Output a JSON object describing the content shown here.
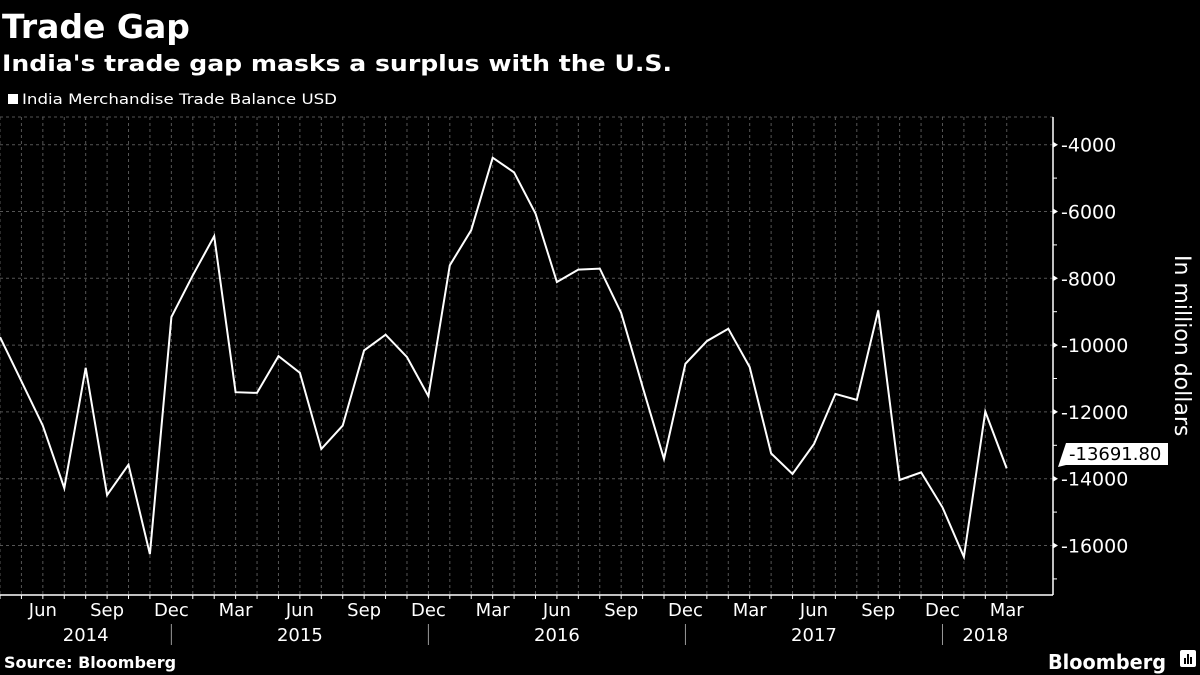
{
  "header": {
    "title": "Trade Gap",
    "subtitle": "India's trade gap masks a surplus with the U.S."
  },
  "footer": {
    "source": "Source: Bloomberg",
    "brand": "Bloomberg"
  },
  "colors": {
    "background": "#000000",
    "line": "#ffffff",
    "grid": "#555555"
  },
  "chart_data": {
    "type": "line",
    "legend": [
      "India Merchandise Trade Balance USD"
    ],
    "legend_placement": "top-left",
    "grid": true,
    "ylabel": "In million dollars",
    "y_axis_side": "right",
    "ylim": [
      -17500,
      -3200
    ],
    "yticks": [
      -4000,
      -6000,
      -8000,
      -10000,
      -12000,
      -14000,
      -16000
    ],
    "ytick_labels": [
      "-4000",
      "-6000",
      "-8000",
      "-10000",
      "-12000",
      "-14000",
      "-16000"
    ],
    "x_month_labels": [
      {
        "label": "Jun",
        "month": "2014-06"
      },
      {
        "label": "Sep",
        "month": "2014-09"
      },
      {
        "label": "Dec",
        "month": "2014-12"
      },
      {
        "label": "Mar",
        "month": "2015-03"
      },
      {
        "label": "Jun",
        "month": "2015-06"
      },
      {
        "label": "Sep",
        "month": "2015-09"
      },
      {
        "label": "Dec",
        "month": "2015-12"
      },
      {
        "label": "Mar",
        "month": "2016-03"
      },
      {
        "label": "Jun",
        "month": "2016-06"
      },
      {
        "label": "Sep",
        "month": "2016-09"
      },
      {
        "label": "Dec",
        "month": "2016-12"
      },
      {
        "label": "Mar",
        "month": "2017-03"
      },
      {
        "label": "Jun",
        "month": "2017-06"
      },
      {
        "label": "Sep",
        "month": "2017-09"
      },
      {
        "label": "Dec",
        "month": "2017-12"
      },
      {
        "label": "Mar",
        "month": "2018-03"
      }
    ],
    "x_year_labels": [
      {
        "label": "2014",
        "month": "2014-08"
      },
      {
        "label": "2015",
        "month": "2015-06"
      },
      {
        "label": "2016",
        "month": "2016-06"
      },
      {
        "label": "2017",
        "month": "2017-06"
      },
      {
        "label": "2018",
        "month": "2018-02"
      }
    ],
    "x": [
      "2014-04",
      "2014-05",
      "2014-06",
      "2014-07",
      "2014-08",
      "2014-09",
      "2014-10",
      "2014-11",
      "2014-12",
      "2015-01",
      "2015-02",
      "2015-03",
      "2015-04",
      "2015-05",
      "2015-06",
      "2015-07",
      "2015-08",
      "2015-09",
      "2015-10",
      "2015-11",
      "2015-12",
      "2016-01",
      "2016-02",
      "2016-03",
      "2016-04",
      "2016-05",
      "2016-06",
      "2016-07",
      "2016-08",
      "2016-09",
      "2016-10",
      "2016-11",
      "2016-12",
      "2017-01",
      "2017-02",
      "2017-03",
      "2017-04",
      "2017-05",
      "2017-06",
      "2017-07",
      "2017-08",
      "2017-09",
      "2017-10",
      "2017-11",
      "2017-12",
      "2018-01",
      "2018-02",
      "2018-03"
    ],
    "series": [
      {
        "name": "India Merchandise Trade Balance USD",
        "values": [
          -9760,
          -11080,
          -12410,
          -14280,
          -10680,
          -14490,
          -13580,
          -16260,
          -9160,
          -7910,
          -6740,
          -11410,
          -11430,
          -10330,
          -10830,
          -13110,
          -12410,
          -10160,
          -9690,
          -10360,
          -11530,
          -7610,
          -6560,
          -4390,
          -4830,
          -6060,
          -8110,
          -7740,
          -7710,
          -9040,
          -11250,
          -13410,
          -10560,
          -9880,
          -9510,
          -10660,
          -13240,
          -13860,
          -12960,
          -11460,
          -11640,
          -8960,
          -14040,
          -13810,
          -14860,
          -16340,
          -11990,
          -13691.8
        ]
      }
    ],
    "last_value_label": "-13691.80"
  }
}
